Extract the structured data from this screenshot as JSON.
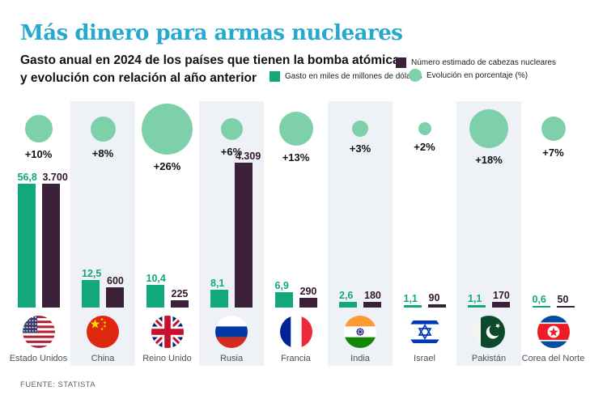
{
  "title": "Más dinero para armas nucleares",
  "subtitle": {
    "line1": "Gasto anual en 2024 de los países que tienen la bomba atómica,",
    "line2": "y evolución con relación al año anterior"
  },
  "legend": {
    "warheads_label": "Número estimado de cabezas nucleares",
    "spending_label": "Gasto en miles de millones de dólares",
    "evolution_label": "Evolución en porcentaje (%)"
  },
  "source": "FUENTE: STATISTA",
  "colors": {
    "title": "#25a9cc",
    "spending": "#12a87c",
    "warheads": "#3a2038",
    "evolution": "#7ed0ab",
    "stripe": "#eef2f6"
  },
  "chart_data": {
    "type": "bar",
    "title": "Más dinero para armas nucleares",
    "subtitle": "Gasto anual en 2024 de los países que tienen la bomba atómica, y evolución con relación al año anterior",
    "categories": [
      "Estado Unidos",
      "China",
      "Reino Unido",
      "Rusia",
      "Francia",
      "India",
      "Israel",
      "Pakistán",
      "Corea del Norte"
    ],
    "series": [
      {
        "name": "Gasto en miles de millones de dólares",
        "values": [
          56.8,
          12.5,
          10.4,
          8.1,
          6.9,
          2.6,
          1.1,
          1.1,
          0.6
        ]
      },
      {
        "name": "Número estimado de cabezas nucleares",
        "values": [
          3700,
          600,
          225,
          4309,
          290,
          180,
          90,
          170,
          50
        ]
      },
      {
        "name": "Evolución en porcentaje (%)",
        "values": [
          10,
          8,
          26,
          6,
          13,
          3,
          2,
          18,
          7
        ]
      }
    ],
    "countries": [
      {
        "name": "Estado Unidos",
        "flag": "us",
        "spending": 56.8,
        "spending_label": "56,8",
        "warheads": 3700,
        "warheads_label": "3.700",
        "evolution_pct": 10,
        "evolution_label": "+10%",
        "circle_d": 34,
        "striped": false
      },
      {
        "name": "China",
        "flag": "cn",
        "spending": 12.5,
        "spending_label": "12,5",
        "warheads": 600,
        "warheads_label": "600",
        "evolution_pct": 8,
        "evolution_label": "+8%",
        "circle_d": 31,
        "striped": true
      },
      {
        "name": "Reino Unido",
        "flag": "gb",
        "spending": 10.4,
        "spending_label": "10,4",
        "warheads": 225,
        "warheads_label": "225",
        "evolution_pct": 26,
        "evolution_label": "+26%",
        "circle_d": 63,
        "striped": false
      },
      {
        "name": "Rusia",
        "flag": "ru",
        "spending": 8.1,
        "spending_label": "8,1",
        "warheads": 4309,
        "warheads_label": "4.309",
        "evolution_pct": 6,
        "evolution_label": "+6%",
        "circle_d": 27,
        "striped": true
      },
      {
        "name": "Francia",
        "flag": "fr",
        "spending": 6.9,
        "spending_label": "6,9",
        "warheads": 290,
        "warheads_label": "290",
        "evolution_pct": 13,
        "evolution_label": "+13%",
        "circle_d": 42,
        "striped": false
      },
      {
        "name": "India",
        "flag": "in",
        "spending": 2.6,
        "spending_label": "2,6",
        "warheads": 180,
        "warheads_label": "180",
        "evolution_pct": 3,
        "evolution_label": "+3%",
        "circle_d": 20,
        "striped": true
      },
      {
        "name": "Israel",
        "flag": "il",
        "spending": 1.1,
        "spending_label": "1,1",
        "warheads": 90,
        "warheads_label": "90",
        "evolution_pct": 2,
        "evolution_label": "+2%",
        "circle_d": 16,
        "striped": false
      },
      {
        "name": "Pakistán",
        "flag": "pk",
        "spending": 1.1,
        "spending_label": "1,1",
        "warheads": 170,
        "warheads_label": "170",
        "evolution_pct": 18,
        "evolution_label": "+18%",
        "circle_d": 48,
        "striped": true
      },
      {
        "name": "Corea del Norte",
        "flag": "kp",
        "spending": 0.6,
        "spending_label": "0,6",
        "warheads": 50,
        "warheads_label": "50",
        "evolution_pct": 7,
        "evolution_label": "+7%",
        "circle_d": 30,
        "striped": false
      }
    ],
    "layout": {
      "grid": false,
      "legend_position": "top-right",
      "baseline_y": 380
    }
  }
}
